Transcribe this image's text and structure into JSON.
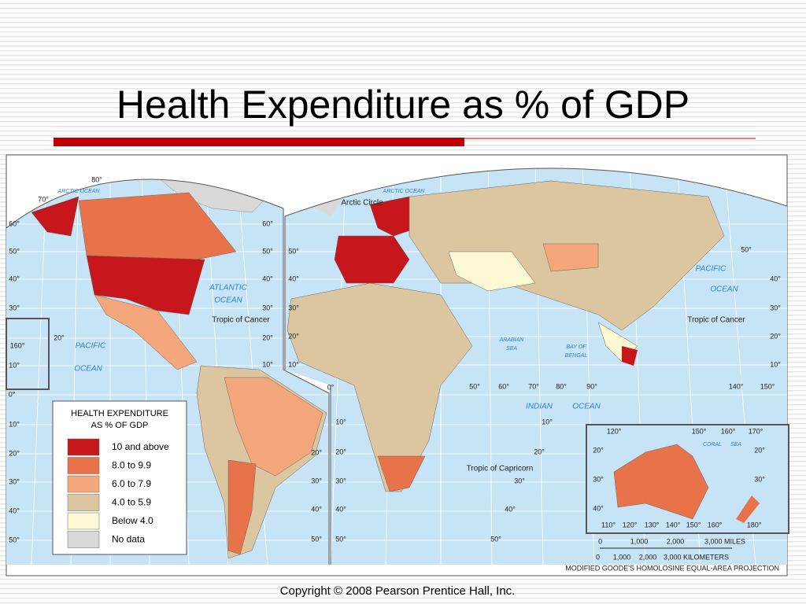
{
  "title": "Health Expenditure as % of GDP",
  "legend": {
    "title": [
      "HEALTH EXPENDITURE",
      "AS % OF GDP"
    ],
    "items": [
      {
        "label": "10 and above",
        "color": "#c8161d"
      },
      {
        "label": "8.0 to 9.9",
        "color": "#e8734a"
      },
      {
        "label": "6.0 to 7.9",
        "color": "#f5a77c"
      },
      {
        "label": "4.0 to 5.9",
        "color": "#dcc6a0"
      },
      {
        "label": "Below 4.0",
        "color": "#fdf8d4"
      },
      {
        "label": "No data",
        "color": "#d9d9d9"
      }
    ]
  },
  "map_labels": [
    "ARCTIC OCEAN",
    "ARCTIC OCEAN",
    "Arctic Circle",
    "ATLANTIC",
    "OCEAN",
    "PACIFIC",
    "OCEAN",
    "PACIFIC",
    "OCEAN",
    "INDIAN",
    "OCEAN",
    "ARABIAN",
    "SEA",
    "BAY OF",
    "BENGAL",
    "CORAL",
    "SEA",
    "Tropic of Cancer",
    "Tropic of Cancer",
    "Tropic of Capricorn",
    "60°",
    "50°",
    "40°",
    "30°",
    "20°",
    "160°",
    "10°",
    "0°",
    "10°",
    "20°",
    "30°",
    "40°",
    "50°",
    "80°",
    "70°",
    "60°",
    "50°",
    "40°",
    "30°",
    "20°",
    "10°",
    "20°",
    "30°",
    "40°",
    "50°",
    "50°",
    "40°",
    "30°",
    "20°",
    "10°",
    "0°",
    "10°",
    "20°",
    "30°",
    "40°",
    "50°",
    "50°",
    "60°",
    "70°",
    "80°",
    "90°",
    "10°",
    "20°",
    "30°",
    "40°",
    "50°",
    "50°",
    "40°",
    "30°",
    "20°",
    "10°",
    "140°",
    "150°",
    "120°",
    "150°",
    "160°",
    "170°",
    "20°",
    "20°",
    "30°",
    "30°",
    "40°",
    "110°",
    "120°",
    "130°",
    "140°",
    "150°",
    "160°",
    "180°"
  ],
  "scale": {
    "miles": [
      "0",
      "1,000",
      "2,000",
      "3,000 MILES"
    ],
    "kilometers": [
      "0",
      "1,000",
      "2,000",
      "3,000 KILOMETERS"
    ]
  },
  "projection": "MODIFIED GOODE'S HOMOLOSINE EQUAL-AREA PROJECTION",
  "copyright": "Copyright © 2008 Pearson Prentice Hall, Inc."
}
